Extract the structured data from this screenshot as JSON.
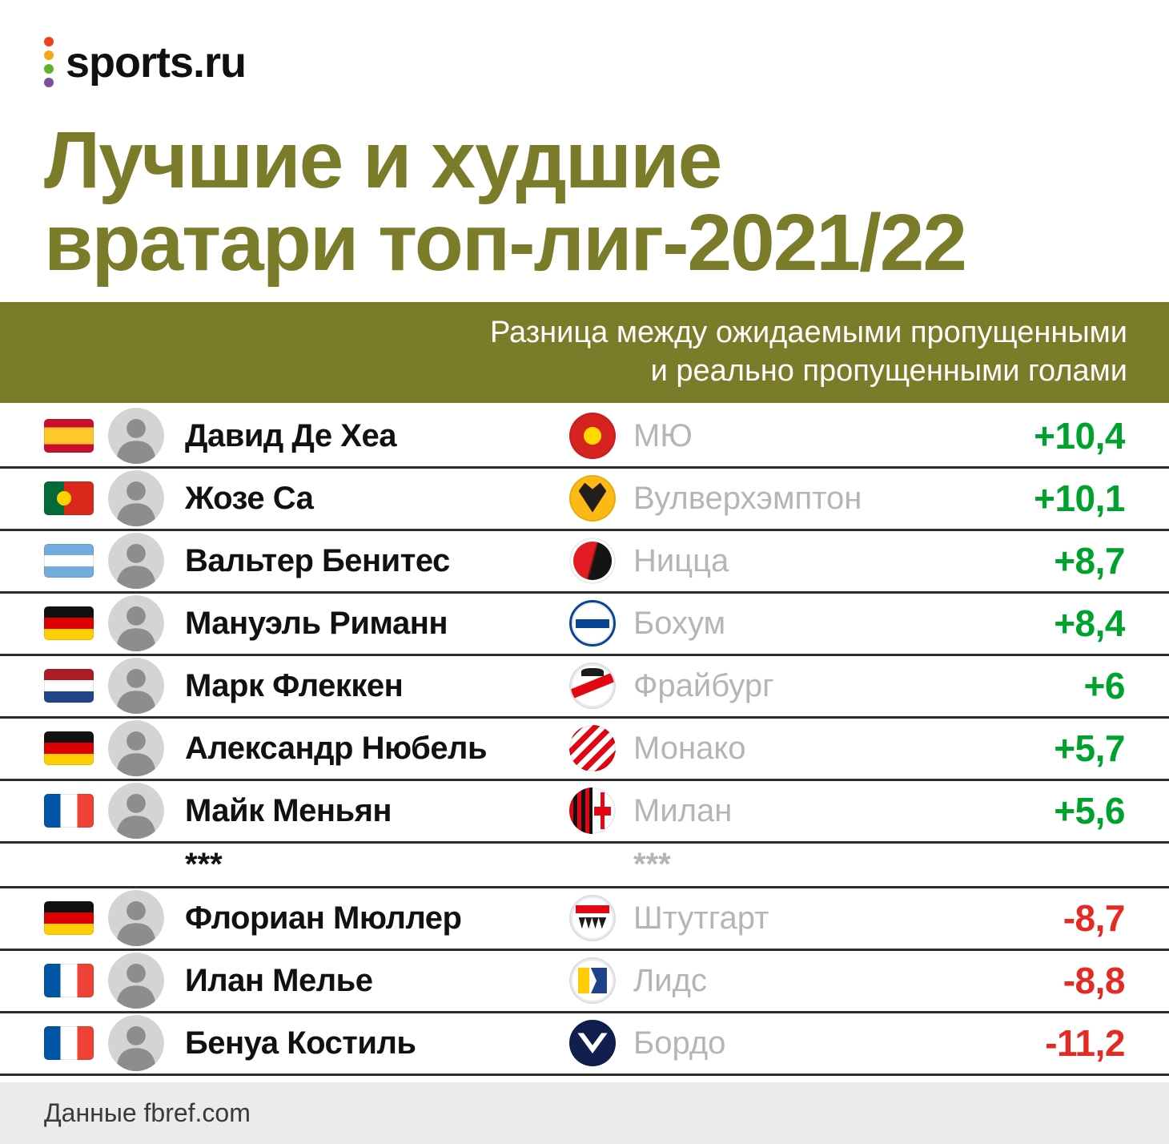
{
  "brand": {
    "logo_text": "sports.ru",
    "logo_dot_colors": [
      "#ef3f24",
      "#f9a51a",
      "#62b12f",
      "#7a4f9e"
    ]
  },
  "title": {
    "line1": "Лучшие и худшие",
    "line2": "вратари топ-лиг-2021/22"
  },
  "banner": {
    "line1": "Разница между ожидаемыми пропущенными",
    "line2": "и реально пропущенными голами"
  },
  "table": {
    "best": [
      {
        "flag": "es",
        "flag_icon": "spain-flag-icon",
        "player": "Давид Де Хеа",
        "crest": "mu",
        "crest_icon": "manchester-united-crest-icon",
        "club": "МЮ",
        "value": "+10,4",
        "sign": "positive"
      },
      {
        "flag": "pt",
        "flag_icon": "portugal-flag-icon",
        "player": "Жозе Са",
        "crest": "wolves",
        "crest_icon": "wolverhampton-crest-icon",
        "club": "Вулверхэмптон",
        "value": "+10,1",
        "sign": "positive"
      },
      {
        "flag": "ar",
        "flag_icon": "argentina-flag-icon",
        "player": "Вальтер Бенитес",
        "crest": "nice",
        "crest_icon": "nice-crest-icon",
        "club": "Ницца",
        "value": "+8,7",
        "sign": "positive"
      },
      {
        "flag": "de",
        "flag_icon": "germany-flag-icon",
        "player": "Мануэль Риманн",
        "crest": "bochum",
        "crest_icon": "bochum-crest-icon",
        "club": "Бохум",
        "value": "+8,4",
        "sign": "positive"
      },
      {
        "flag": "nl",
        "flag_icon": "netherlands-flag-icon",
        "player": "Марк Флеккен",
        "crest": "freiburg",
        "crest_icon": "freiburg-crest-icon",
        "club": "Фрайбург",
        "value": "+6",
        "sign": "positive"
      },
      {
        "flag": "de",
        "flag_icon": "germany-flag-icon",
        "player": "Александр Нюбель",
        "crest": "monaco",
        "crest_icon": "monaco-crest-icon",
        "club": "Монако",
        "value": "+5,7",
        "sign": "positive"
      },
      {
        "flag": "fr",
        "flag_icon": "france-flag-icon",
        "player": "Майк Меньян",
        "crest": "milan",
        "crest_icon": "milan-crest-icon",
        "club": "Милан",
        "value": "+5,6",
        "sign": "positive"
      }
    ],
    "separator": {
      "left": "***",
      "right": "***"
    },
    "worst": [
      {
        "flag": "de",
        "flag_icon": "germany-flag-icon",
        "player": "Флориан Мюллер",
        "crest": "stuttgart",
        "crest_icon": "stuttgart-crest-icon",
        "club": "Штутгарт",
        "value": "-8,7",
        "sign": "negative"
      },
      {
        "flag": "fr",
        "flag_icon": "france-flag-icon",
        "player": "Илан Мелье",
        "crest": "leeds",
        "crest_icon": "leeds-crest-icon",
        "club": "Лидс",
        "value": "-8,8",
        "sign": "negative"
      },
      {
        "flag": "fr",
        "flag_icon": "france-flag-icon",
        "player": "Бенуа Костиль",
        "crest": "bordeaux",
        "crest_icon": "bordeaux-crest-icon",
        "club": "Бордо",
        "value": "-11,2",
        "sign": "negative"
      }
    ]
  },
  "footer": {
    "text": "Данные fbref.com"
  },
  "colors": {
    "olive": "#7b7c2a",
    "positive": "#00a22e",
    "negative": "#e52a24",
    "club_gray": "#b5b5b5",
    "line": "#2d2d2d"
  },
  "chart_data": {
    "type": "table",
    "title": "Лучшие и худшие вратари топ-лиг-2021/22",
    "subtitle": "Разница между ожидаемыми пропущенными и реально пропущенными голами",
    "rows": [
      {
        "player": "Давид Де Хеа",
        "club": "МЮ",
        "diff": 10.4
      },
      {
        "player": "Жозе Са",
        "club": "Вулверхэмптон",
        "diff": 10.1
      },
      {
        "player": "Вальтер Бенитес",
        "club": "Ницца",
        "diff": 8.7
      },
      {
        "player": "Мануэль Риманн",
        "club": "Бохум",
        "diff": 8.4
      },
      {
        "player": "Марк Флеккен",
        "club": "Фрайбург",
        "diff": 6
      },
      {
        "player": "Александр Нюбель",
        "club": "Монако",
        "diff": 5.7
      },
      {
        "player": "Майк Меньян",
        "club": "Милан",
        "diff": 5.6
      },
      {
        "player": "Флориан Мюллер",
        "club": "Штутгарт",
        "diff": -8.7
      },
      {
        "player": "Илан Мелье",
        "club": "Лидс",
        "diff": -8.8
      },
      {
        "player": "Бенуа Костиль",
        "club": "Бордо",
        "diff": -11.2
      }
    ],
    "source": "Данные fbref.com"
  }
}
